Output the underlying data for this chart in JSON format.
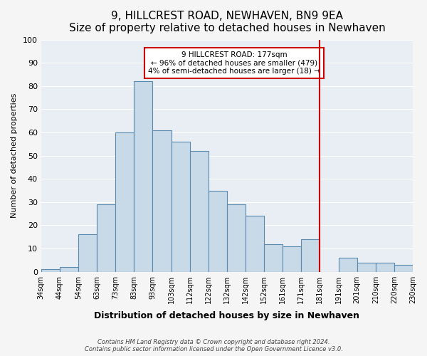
{
  "title": "9, HILLCREST ROAD, NEWHAVEN, BN9 9EA",
  "subtitle": "Size of property relative to detached houses in Newhaven",
  "xlabel": "Distribution of detached houses by size in Newhaven",
  "ylabel": "Number of detached properties",
  "bar_color": "#c8d9e8",
  "bar_edge_color": "#5a8ab0",
  "background_color": "#f5f5f5",
  "grid_color": "#ffffff",
  "tick_labels": [
    "34sqm",
    "44sqm",
    "54sqm",
    "63sqm",
    "73sqm",
    "83sqm",
    "93sqm",
    "103sqm",
    "112sqm",
    "122sqm",
    "132sqm",
    "142sqm",
    "152sqm",
    "161sqm",
    "171sqm",
    "181sqm",
    "191sqm",
    "201sqm",
    "210sqm",
    "220sqm",
    "230sqm"
  ],
  "bar_heights": [
    1,
    2,
    16,
    29,
    60,
    82,
    61,
    56,
    52,
    35,
    29,
    24,
    12,
    11,
    14,
    0,
    6,
    4,
    4,
    3
  ],
  "ylim": [
    0,
    100
  ],
  "vline_x": 15,
  "vline_color": "#cc0000",
  "annotation_title": "9 HILLCREST ROAD: 177sqm",
  "annotation_line1": "← 96% of detached houses are smaller (479)",
  "annotation_line2": "4% of semi-detached houses are larger (18) →",
  "footer_line1": "Contains HM Land Registry data © Crown copyright and database right 2024.",
  "footer_line2": "Contains public sector information licensed under the Open Government Licence v3.0."
}
